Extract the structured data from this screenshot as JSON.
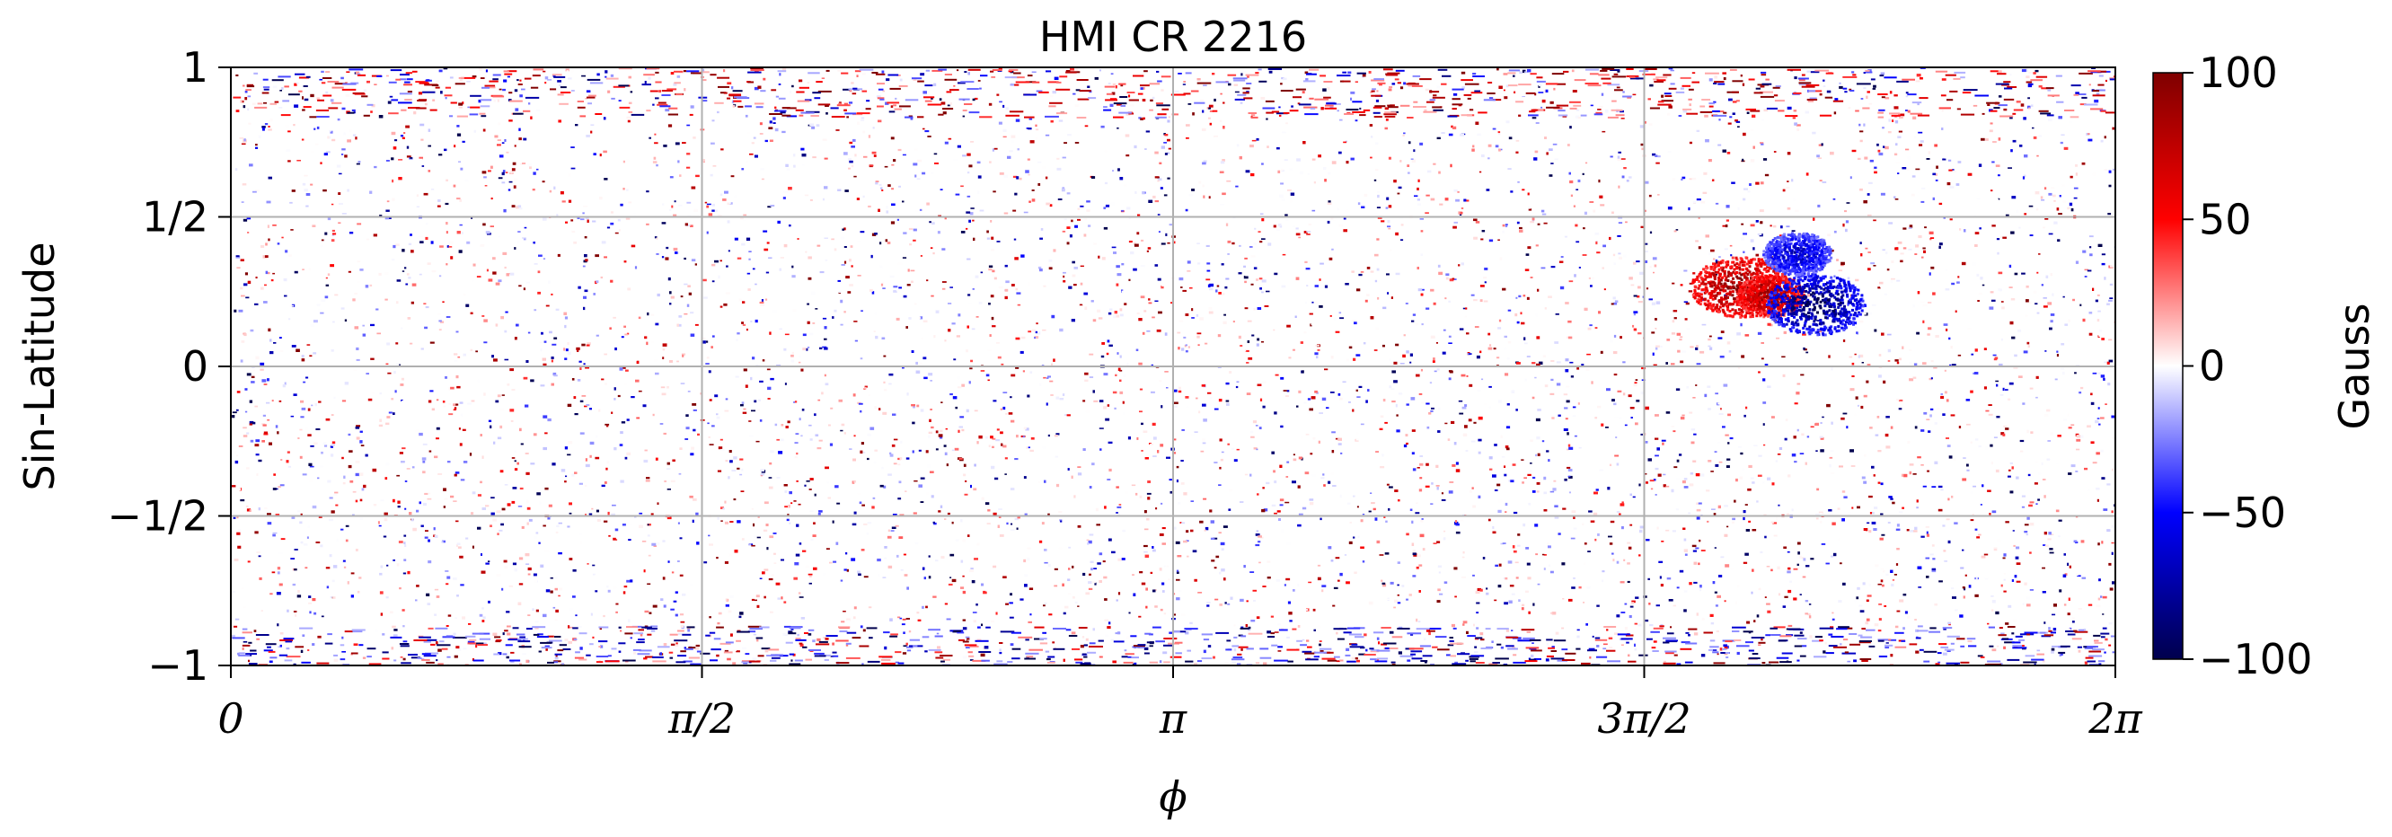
{
  "chart_data": {
    "type": "heatmap",
    "title": "HMI CR 2216",
    "xlabel": "ϕ",
    "ylabel": "Sin-Latitude",
    "colorbar_label": "Gauss",
    "xlim": [
      0,
      6.2832
    ],
    "ylim": [
      -1,
      1
    ],
    "clim": [
      -100,
      100
    ],
    "colormap": "seismic",
    "grid": true,
    "x_ticks": [
      {
        "value": 0,
        "label": "0"
      },
      {
        "value": 1.5708,
        "label": "π/2"
      },
      {
        "value": 3.1416,
        "label": "π"
      },
      {
        "value": 4.7124,
        "label": "3π/2"
      },
      {
        "value": 6.2832,
        "label": "2π"
      }
    ],
    "y_ticks": [
      {
        "value": 1,
        "label": "1"
      },
      {
        "value": 0.5,
        "label": "1/2"
      },
      {
        "value": 0,
        "label": "0"
      },
      {
        "value": -0.5,
        "label": "−1/2"
      },
      {
        "value": -1,
        "label": "−1"
      }
    ],
    "colorbar_ticks": [
      {
        "value": 100,
        "label": "100"
      },
      {
        "value": 50,
        "label": "50"
      },
      {
        "value": 0,
        "label": "0"
      },
      {
        "value": -50,
        "label": "−50"
      },
      {
        "value": -100,
        "label": "−100"
      }
    ],
    "colorbar_colors": [
      "#7f0000",
      "#ff0000",
      "#ffffff",
      "#0000ff",
      "#00004c"
    ],
    "active_regions": [
      {
        "phi": 5.03,
        "sinlat": 0.27,
        "field": 100
      },
      {
        "phi": 5.13,
        "sinlat": 0.24,
        "field": 90
      },
      {
        "phi": 5.28,
        "sinlat": 0.21,
        "field": -100
      },
      {
        "phi": 5.22,
        "sinlat": 0.38,
        "field": -70
      }
    ]
  }
}
